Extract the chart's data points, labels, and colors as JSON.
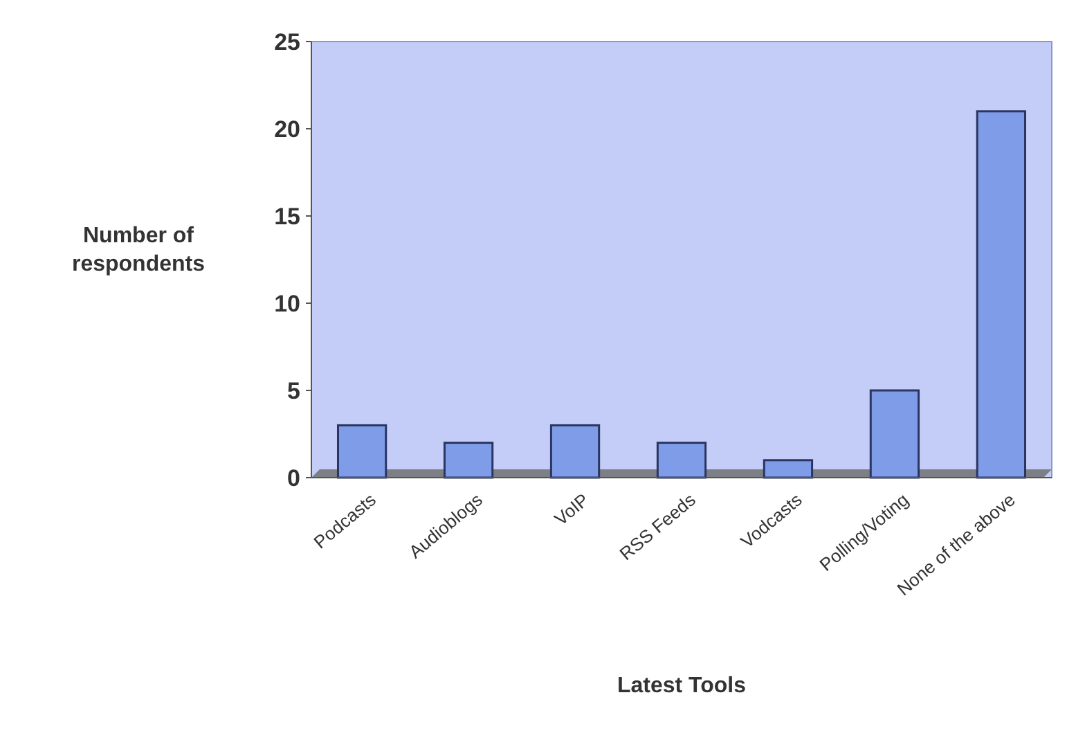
{
  "chart_data": {
    "type": "bar",
    "xlabel": "Latest Tools",
    "ylabel": "Number of respondents",
    "categories": [
      "Podcasts",
      "Audioblogs",
      "VoIP",
      "RSS Feeds",
      "Vodcasts",
      "Polling/Voting",
      "None of the above"
    ],
    "values": [
      3,
      2,
      3,
      2,
      1,
      5,
      21
    ],
    "color": "#7f9ce8",
    "ylim": [
      0,
      25
    ],
    "yticks": [
      0,
      5,
      10,
      15,
      20,
      25
    ],
    "grid": false
  }
}
